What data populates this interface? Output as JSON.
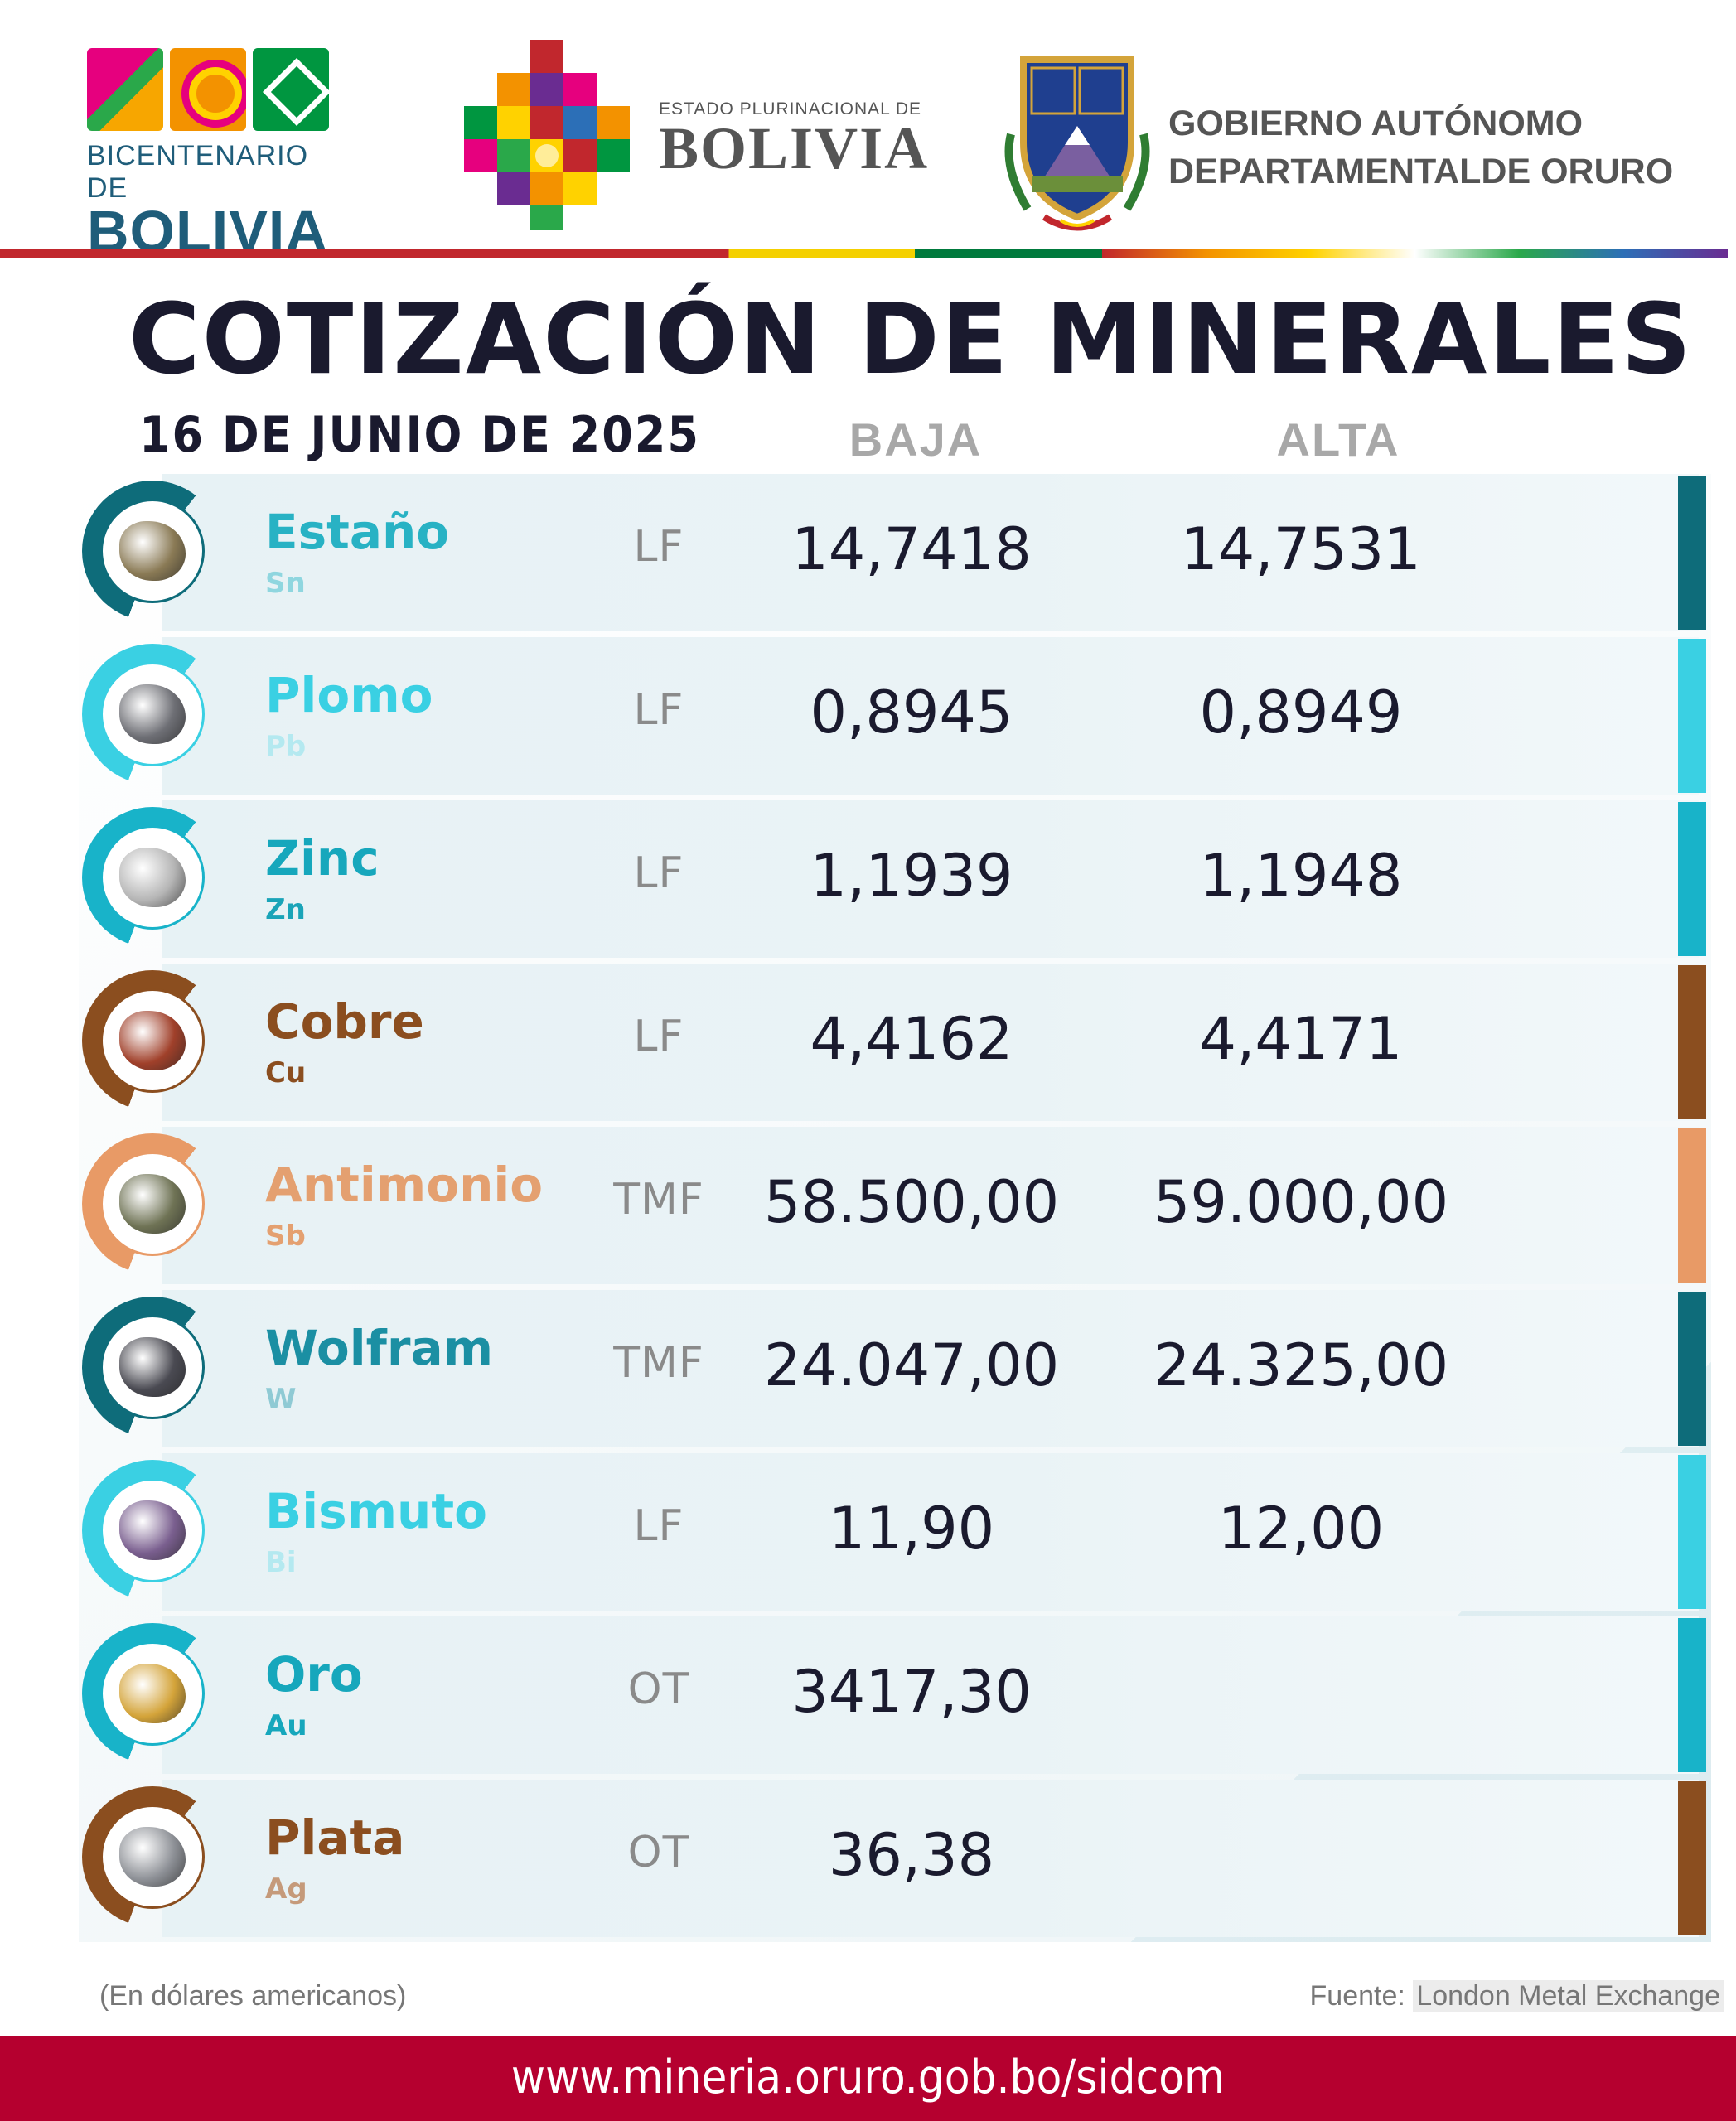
{
  "header": {
    "bicentenario": {
      "top": "BICENTENARIO DE",
      "big": "BOLIVIA"
    },
    "estado": {
      "small": "ESTADO PLURINACIONAL DE",
      "big": "BOLIVIA"
    },
    "oruro": {
      "line1": "GOBIERNO AUTÓNOMO",
      "line2": "DEPARTAMENTALDE ORURO"
    }
  },
  "title": "COTIZACIÓN DE MINERALES",
  "date": "16 DE JUNIO DE 2025",
  "columns": {
    "baja": "BAJA",
    "alta": "ALTA"
  },
  "minerals": [
    {
      "name": "Estaño",
      "symbol": "Sn",
      "unit": "LF",
      "baja": "14,7418",
      "alta": "14,7531",
      "name_color": "#28b2c4",
      "symbol_color": "#8fd6df",
      "accent": "#0e6c7a",
      "rock_color": "#8a7a55"
    },
    {
      "name": "Plomo",
      "symbol": "Pb",
      "unit": "LF",
      "baja": "0,8945",
      "alta": "0,8949",
      "name_color": "#3ad0e3",
      "symbol_color": "#b4e9f0",
      "accent": "#3ad0e3",
      "rock_color": "#6e6f75"
    },
    {
      "name": "Zinc",
      "symbol": "Zn",
      "unit": "LF",
      "baja": "1,1939",
      "alta": "1,1948",
      "name_color": "#16a7bc",
      "symbol_color": "#1aa4b8",
      "accent": "#18b3c9",
      "rock_color": "#b5b5b5"
    },
    {
      "name": "Cobre",
      "symbol": "Cu",
      "unit": "LF",
      "baja": "4,4162",
      "alta": "4,4171",
      "name_color": "#8b4e1f",
      "symbol_color": "#8b4e1f",
      "accent": "#8b4e1f",
      "rock_color": "#a0402a"
    },
    {
      "name": "Antimonio",
      "symbol": "Sb",
      "unit": "TMF",
      "baja": "58.500,00",
      "alta": "59.000,00",
      "name_color": "#e4a070",
      "symbol_color": "#e4a070",
      "accent": "#e89a66",
      "rock_color": "#6f7355"
    },
    {
      "name": "Wolfram",
      "symbol": "W",
      "unit": "TMF",
      "baja": "24.047,00",
      "alta": "24.325,00",
      "name_color": "#1b8fa3",
      "symbol_color": "#8fcad4",
      "accent": "#0e6c7a",
      "rock_color": "#4a4a52"
    },
    {
      "name": "Bismuto",
      "symbol": "Bi",
      "unit": "LF",
      "baja": "11,90",
      "alta": "12,00",
      "name_color": "#3ad0e3",
      "symbol_color": "#b4e9f0",
      "accent": "#3ad0e3",
      "rock_color": "#7a5f8f"
    },
    {
      "name": "Oro",
      "symbol": "Au",
      "unit": "OT",
      "baja": "3417,30",
      "alta": "",
      "name_color": "#16a7bc",
      "symbol_color": "#16a7bc",
      "accent": "#18b3c9",
      "rock_color": "#d4a43a"
    },
    {
      "name": "Plata",
      "symbol": "Ag",
      "unit": "OT",
      "baja": "36,38",
      "alta": "",
      "name_color": "#8b4e1f",
      "symbol_color": "#c59a7a",
      "accent": "#8b4e1f",
      "rock_color": "#8d9096"
    }
  ],
  "footer": {
    "note": "(En dólares americanos)",
    "source_label": "Fuente:",
    "source_name": "London Metal Exchange",
    "url": "www.mineria.oruro.gob.bo/sidcom"
  }
}
